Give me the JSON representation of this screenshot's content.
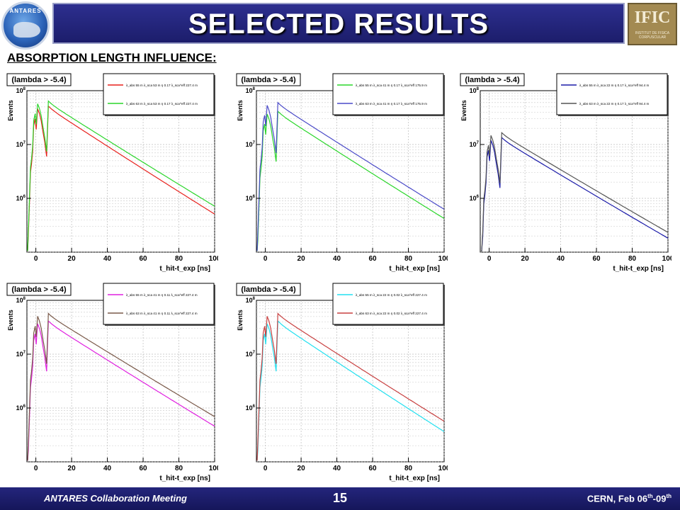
{
  "header": {
    "title": "SELECTED RESULTS",
    "left_logo_text": "ANTARES",
    "right_logo_text": "IFIC",
    "right_logo_subtext": "INSTITUT DE FISICA CORPUSCULAR"
  },
  "section_title": "ABSORPTION LENGTH INFLUENCE:",
  "footer": {
    "meeting": "ANTARES Collaboration Meeting",
    "page_number": "15",
    "place_date_main": "CERN, Feb 06",
    "sup1": "th",
    "dash": "-09",
    "sup2": "th"
  },
  "chart_data": [
    {
      "type": "line",
      "tag": "(lambda > -5.4)",
      "ylabel": "Events",
      "xlabel": "t_hit-t_exp [ns]",
      "xlim": [
        -5,
        100
      ],
      "ylim_log": [
        100000,
        100000000
      ],
      "x_ticks": [
        "0",
        "20",
        "40",
        "60",
        "80",
        "100"
      ],
      "y_ticks": [
        "10^6",
        "10^7",
        "10^8"
      ],
      "series": [
        {
          "name": "λ_abs 55 m λ_sca 53 m η 0.17 λ_sca^eff 227.4 m",
          "color": "#e8201c",
          "peak": 50000000,
          "end": 700000
        },
        {
          "name": "λ_abs 63 m λ_sca 53 m η 0.17 λ_sca^eff 227.4 m",
          "color": "#2ad62a",
          "peak": 62000000,
          "end": 980000
        }
      ]
    },
    {
      "type": "line",
      "tag": "(lambda > -5.4)",
      "ylabel": "Events",
      "xlabel": "t_hit-t_exp [ns]",
      "xlim": [
        -5,
        100
      ],
      "ylim_log": [
        100000,
        100000000
      ],
      "x_ticks": [
        "0",
        "20",
        "40",
        "60",
        "80",
        "100"
      ],
      "y_ticks": [
        "10^6",
        "10^7",
        "10^8"
      ],
      "series": [
        {
          "name": "λ_abs 55 m λ_sca 41 m η 0.17 λ_sca^eff 175.9 m",
          "color": "#2ad62a",
          "peak": 40000000,
          "end": 580000
        },
        {
          "name": "λ_abs 63 m λ_sca 41 m η 0.17 λ_sca^eff 175.9 m",
          "color": "#4a4ac8",
          "peak": 58000000,
          "end": 860000
        }
      ]
    },
    {
      "type": "line",
      "tag": "(lambda > -5.4)",
      "ylabel": "Events",
      "xlabel": "t_hit-t_exp [ns]",
      "xlim": [
        -5,
        100
      ],
      "ylim_log": [
        100000,
        100000000
      ],
      "x_ticks": [
        "0",
        "20",
        "40",
        "60",
        "80",
        "100"
      ],
      "y_ticks": [
        "10^6",
        "10^7",
        "10^8"
      ],
      "series": [
        {
          "name": "λ_abs 55 m λ_sca 22 m η 0.17 λ_sca^eff 94.4 m",
          "color": "#1a1aa8",
          "peak": 13000000,
          "end": 250000
        },
        {
          "name": "λ_abs 63 m λ_sca 22 m η 0.17 λ_sca^eff 94.4 m",
          "color": "#555555",
          "peak": 16000000,
          "end": 320000
        }
      ]
    },
    {
      "type": "line",
      "tag": "(lambda > -5.4)",
      "ylabel": "Events",
      "xlabel": "t_hit-t_exp [ns]",
      "xlim": [
        -5,
        100
      ],
      "ylim_log": [
        100000,
        100000000
      ],
      "x_ticks": [
        "0",
        "20",
        "40",
        "60",
        "80",
        "100"
      ],
      "y_ticks": [
        "10^6",
        "10^7",
        "10^8"
      ],
      "series": [
        {
          "name": "λ_abs 55 m λ_sca 41 m η 0.11 λ_sca^eff 227.4 m",
          "color": "#e020e0",
          "peak": 40000000,
          "end": 630000
        },
        {
          "name": "λ_abs 63 m λ_sca 41 m η 0.11 λ_sca^eff 227.4 m",
          "color": "#7a5a4a",
          "peak": 55000000,
          "end": 950000
        }
      ]
    },
    {
      "type": "line",
      "tag": "(lambda > -5.4)",
      "ylabel": "Events",
      "xlabel": "t_hit-t_exp [ns]",
      "xlim": [
        -5,
        100
      ],
      "ylim_log": [
        100000,
        100000000
      ],
      "x_ticks": [
        "0",
        "20",
        "40",
        "60",
        "80",
        "100"
      ],
      "y_ticks": [
        "10^6",
        "10^7",
        "10^8"
      ],
      "series": [
        {
          "name": "λ_abs 55 m λ_sca 22 m η 0.02 λ_sca^eff 227.4 m",
          "color": "#22e0f0",
          "peak": 40000000,
          "end": 500000
        },
        {
          "name": "λ_abs 63 m λ_sca 22 m η 0.02 λ_sca^eff 227.4 m",
          "color": "#c84040",
          "peak": 55000000,
          "end": 780000
        }
      ]
    }
  ]
}
